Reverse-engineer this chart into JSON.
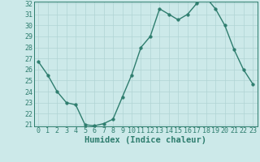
{
  "x": [
    0,
    1,
    2,
    3,
    4,
    5,
    6,
    7,
    8,
    9,
    10,
    11,
    12,
    13,
    14,
    15,
    16,
    17,
    18,
    19,
    20,
    21,
    22,
    23
  ],
  "y": [
    26.7,
    25.5,
    24.0,
    23.0,
    22.8,
    21.0,
    20.9,
    21.1,
    21.5,
    23.5,
    25.5,
    28.0,
    29.0,
    31.5,
    31.0,
    30.5,
    31.0,
    32.0,
    32.5,
    31.5,
    30.0,
    27.8,
    26.0,
    24.7
  ],
  "xlabel": "Humidex (Indice chaleur)",
  "ylim_min": 21,
  "ylim_max": 32,
  "xlim_min": 0,
  "xlim_max": 23,
  "yticks": [
    21,
    22,
    23,
    24,
    25,
    26,
    27,
    28,
    29,
    30,
    31,
    32
  ],
  "xticks": [
    0,
    1,
    2,
    3,
    4,
    5,
    6,
    7,
    8,
    9,
    10,
    11,
    12,
    13,
    14,
    15,
    16,
    17,
    18,
    19,
    20,
    21,
    22,
    23
  ],
  "line_color": "#2e7d6e",
  "bg_color": "#cce9e9",
  "grid_color": "#b0d4d4",
  "xlabel_fontsize": 7.5,
  "tick_fontsize": 6,
  "line_width": 1.0,
  "marker_size": 2.5
}
